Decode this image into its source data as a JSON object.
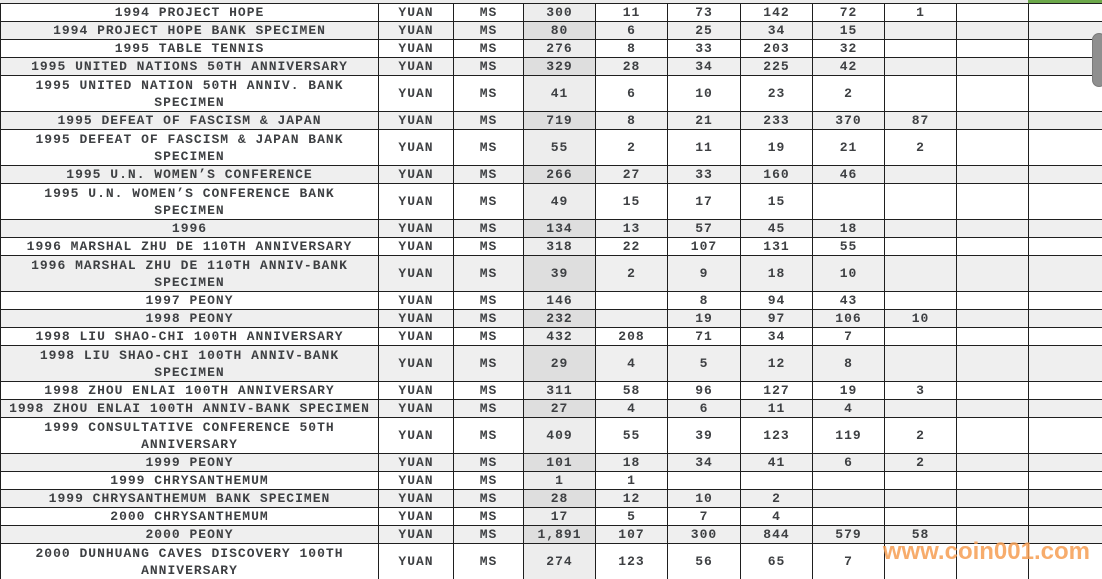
{
  "page": {
    "watermark": "www.coin001.com",
    "colors": {
      "accent_green": "#6ca84a",
      "watermark_orange": "#f69d52",
      "row_alt_gray": "#efefef",
      "total_column_gray": "#ececec",
      "name_text": "#5c6b82",
      "value_text": "#3e4043",
      "grid_line": "#1f1f1f",
      "scrollbar_thumb": "#8f8f8f"
    }
  },
  "table": {
    "currency_label": "YUAN",
    "grade_label": "MS",
    "rows": [
      {
        "name": "1994 PROJECT HOPE",
        "values": [
          "300",
          "11",
          "73",
          "142",
          "72",
          "1",
          "",
          ""
        ]
      },
      {
        "name": "1994 PROJECT HOPE BANK SPECIMEN",
        "values": [
          "80",
          "6",
          "25",
          "34",
          "15",
          "",
          "",
          ""
        ]
      },
      {
        "name": "1995 TABLE TENNIS",
        "values": [
          "276",
          "8",
          "33",
          "203",
          "32",
          "",
          "",
          ""
        ]
      },
      {
        "name": "1995 UNITED NATIONS 50TH ANNIVERSARY",
        "values": [
          "329",
          "28",
          "34",
          "225",
          "42",
          "",
          "",
          ""
        ]
      },
      {
        "name": "1995 UNITED NATION 50TH ANNIV. BANK\nSPECIMEN",
        "values": [
          "41",
          "6",
          "10",
          "23",
          "2",
          "",
          "",
          ""
        ]
      },
      {
        "name": "1995 DEFEAT OF FASCISM & JAPAN",
        "values": [
          "719",
          "8",
          "21",
          "233",
          "370",
          "87",
          "",
          ""
        ]
      },
      {
        "name": "1995 DEFEAT OF FASCISM & JAPAN BANK\nSPECIMEN",
        "values": [
          "55",
          "2",
          "11",
          "19",
          "21",
          "2",
          "",
          ""
        ]
      },
      {
        "name": "1995 U.N. WOMEN’S CONFERENCE",
        "values": [
          "266",
          "27",
          "33",
          "160",
          "46",
          "",
          "",
          ""
        ]
      },
      {
        "name": "1995 U.N. WOMEN’S CONFERENCE BANK\nSPECIMEN",
        "values": [
          "49",
          "15",
          "17",
          "15",
          "",
          "",
          "",
          ""
        ]
      },
      {
        "name": "1996",
        "values": [
          "134",
          "13",
          "57",
          "45",
          "18",
          "",
          "",
          ""
        ]
      },
      {
        "name": "1996 MARSHAL ZHU DE 110TH ANNIVERSARY",
        "values": [
          "318",
          "22",
          "107",
          "131",
          "55",
          "",
          "",
          ""
        ]
      },
      {
        "name": "1996 MARSHAL ZHU DE 110TH ANNIV-BANK\nSPECIMEN",
        "values": [
          "39",
          "2",
          "9",
          "18",
          "10",
          "",
          "",
          ""
        ]
      },
      {
        "name": "1997 PEONY",
        "values": [
          "146",
          "",
          "8",
          "94",
          "43",
          "",
          "",
          ""
        ]
      },
      {
        "name": "1998 PEONY",
        "values": [
          "232",
          "",
          "19",
          "97",
          "106",
          "10",
          "",
          ""
        ]
      },
      {
        "name": "1998 LIU SHAO-CHI 100TH ANNIVERSARY",
        "values": [
          "432",
          "208",
          "71",
          "34",
          "7",
          "",
          "",
          ""
        ]
      },
      {
        "name": "1998 LIU SHAO-CHI 100TH ANNIV-BANK\nSPECIMEN",
        "values": [
          "29",
          "4",
          "5",
          "12",
          "8",
          "",
          "",
          ""
        ]
      },
      {
        "name": "1998 ZHOU ENLAI 100TH ANNIVERSARY",
        "values": [
          "311",
          "58",
          "96",
          "127",
          "19",
          "3",
          "",
          ""
        ]
      },
      {
        "name": "1998 ZHOU ENLAI 100TH ANNIV-BANK SPECIMEN",
        "values": [
          "27",
          "4",
          "6",
          "11",
          "4",
          "",
          "",
          ""
        ]
      },
      {
        "name": "1999 CONSULTATIVE CONFERENCE 50TH\nANNIVERSARY",
        "values": [
          "409",
          "55",
          "39",
          "123",
          "119",
          "2",
          "",
          ""
        ]
      },
      {
        "name": "1999 PEONY",
        "values": [
          "101",
          "18",
          "34",
          "41",
          "6",
          "2",
          "",
          ""
        ]
      },
      {
        "name": "1999 CHRYSANTHEMUM",
        "values": [
          "1",
          "1",
          "",
          "",
          "",
          "",
          "",
          ""
        ]
      },
      {
        "name": "1999 CHRYSANTHEMUM BANK SPECIMEN",
        "values": [
          "28",
          "12",
          "10",
          "2",
          "",
          "",
          "",
          ""
        ]
      },
      {
        "name": "2000 CHRYSANTHEMUM",
        "values": [
          "17",
          "5",
          "7",
          "4",
          "",
          "",
          "",
          ""
        ]
      },
      {
        "name": "2000 PEONY",
        "values": [
          "1,891",
          "107",
          "300",
          "844",
          "579",
          "58",
          "",
          ""
        ]
      },
      {
        "name": "2000 DUNHUANG CAVES DISCOVERY 100TH\nANNIVERSARY",
        "values": [
          "274",
          "123",
          "56",
          "65",
          "7",
          "",
          "",
          ""
        ]
      }
    ]
  }
}
